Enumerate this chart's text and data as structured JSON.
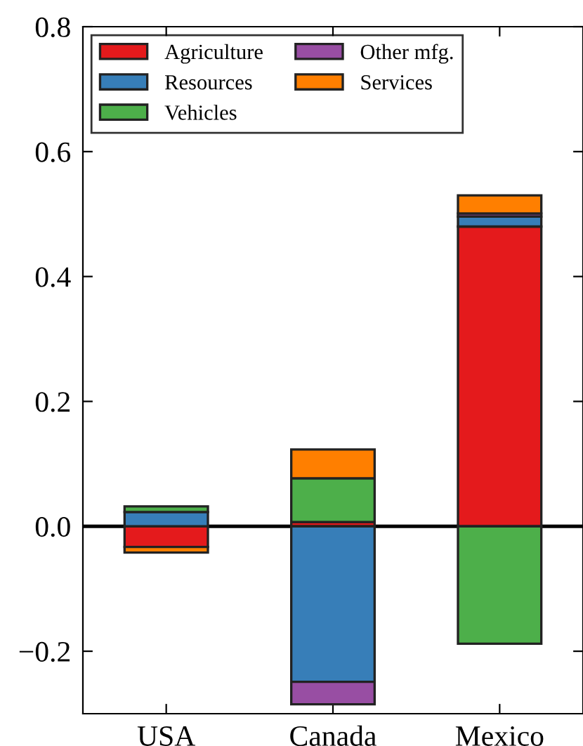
{
  "chart_data": {
    "type": "bar",
    "stacked": true,
    "categories": [
      "USA",
      "Canada",
      "Mexico"
    ],
    "series": [
      {
        "name": "Agriculture",
        "color": "#e41a1c",
        "values": [
          -0.033,
          0.007,
          0.48
        ]
      },
      {
        "name": "Resources",
        "color": "#377eb8",
        "values": [
          0.023,
          -0.249,
          0.016
        ]
      },
      {
        "name": "Vehicles",
        "color": "#4daf4a",
        "values": [
          0.009,
          0.07,
          -0.188
        ]
      },
      {
        "name": "Other mfg.",
        "color": "#984ea3",
        "values": [
          null,
          -0.036,
          0.005
        ]
      },
      {
        "name": "Services",
        "color": "#ff7f00",
        "values": [
          -0.009,
          0.046,
          0.029
        ]
      }
    ],
    "ylim": [
      -0.3,
      0.8
    ],
    "yticks": [
      {
        "value": -0.2,
        "label": "−0.2"
      },
      {
        "value": 0.0,
        "label": "0.0"
      },
      {
        "value": 0.2,
        "label": "0.2"
      },
      {
        "value": 0.4,
        "label": "0.4"
      },
      {
        "value": 0.6,
        "label": "0.6"
      },
      {
        "value": 0.8,
        "label": "0.8"
      }
    ],
    "ref_lines": [
      {
        "axis": "y",
        "value": 0,
        "color": "#000000"
      }
    ],
    "legend": "top left",
    "grid": false
  }
}
